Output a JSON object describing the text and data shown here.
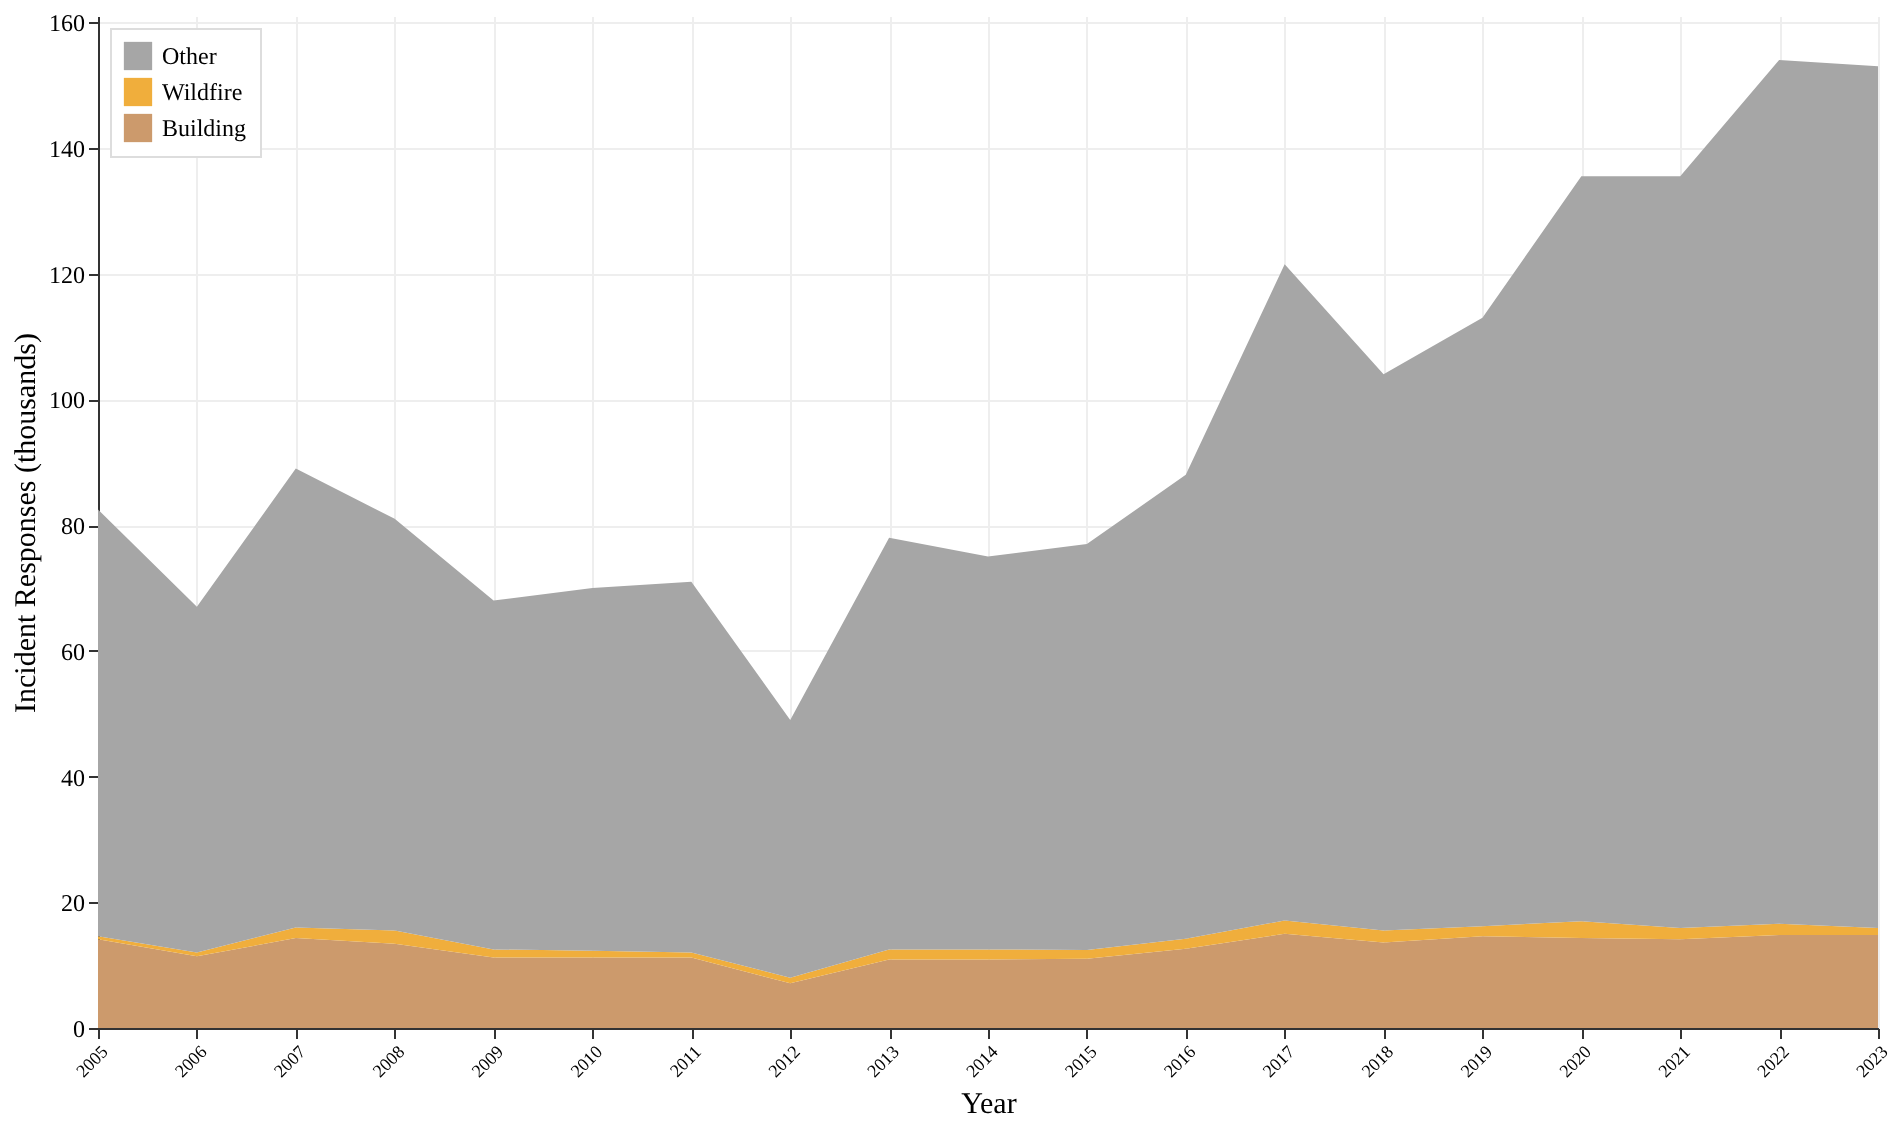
{
  "chart_data": {
    "type": "area",
    "stacked": true,
    "xlabel": "Year",
    "ylabel": "Incident Responses (thousands)",
    "x": [
      2005,
      2006,
      2007,
      2008,
      2009,
      2010,
      2011,
      2012,
      2013,
      2014,
      2015,
      2016,
      2017,
      2018,
      2019,
      2020,
      2021,
      2022,
      2023
    ],
    "xlim": [
      2005,
      2023
    ],
    "xticks": [
      2005,
      2006,
      2007,
      2008,
      2009,
      2010,
      2011,
      2012,
      2013,
      2014,
      2015,
      2016,
      2017,
      2018,
      2019,
      2020,
      2021,
      2022,
      2023
    ],
    "ylim": [
      0,
      161
    ],
    "yticks": [
      0,
      20,
      40,
      60,
      80,
      100,
      120,
      140,
      160
    ],
    "grid": true,
    "legend": "top left",
    "series": [
      {
        "name": "Building",
        "color": "#cc9a6c",
        "values": [
          14.1,
          11.4,
          14.3,
          13.4,
          11.2,
          11.2,
          11.2,
          7.1,
          10.9,
          10.9,
          11.0,
          12.6,
          15.0,
          13.6,
          14.6,
          14.3,
          14.1,
          14.8,
          14.8
        ]
      },
      {
        "name": "Wildfire",
        "color": "#f0ae3c",
        "values": [
          0.5,
          0.6,
          1.7,
          2.1,
          1.3,
          1.1,
          0.8,
          0.9,
          1.6,
          1.6,
          1.4,
          1.6,
          2.1,
          1.9,
          1.6,
          2.7,
          1.8,
          1.8,
          1.1
        ]
      },
      {
        "name": "Other",
        "color": "#a6a6a6",
        "values": [
          67.9,
          55.0,
          73.0,
          65.5,
          55.5,
          57.7,
          59.0,
          41.0,
          65.5,
          62.5,
          64.6,
          73.8,
          104.4,
          88.5,
          96.8,
          118.5,
          119.6,
          137.4,
          137.1
        ]
      }
    ]
  }
}
